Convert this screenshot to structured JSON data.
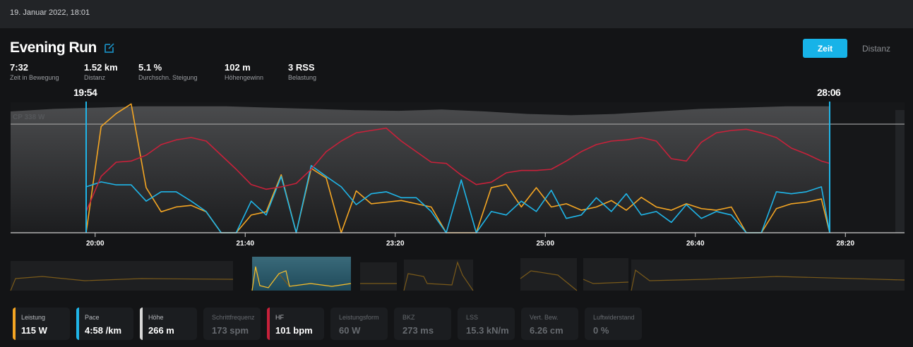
{
  "header": {
    "date": "19. Januar 2022, 18:01"
  },
  "activity": {
    "title": "Evening Run",
    "edit_icon": "edit-icon"
  },
  "view_toggle": {
    "options": [
      "Zeit",
      "Distanz"
    ],
    "selected": "Zeit",
    "accent": "#17b3e8"
  },
  "stats": [
    {
      "value": "7:32",
      "label": "Zeit in Bewegung"
    },
    {
      "value": "1.52 km",
      "label": "Distanz"
    },
    {
      "value": "5.1 %",
      "label": "Durchschn. Steigung"
    },
    {
      "value": "102 m",
      "label": "Höhengewinn"
    },
    {
      "value": "3 RSS",
      "label": "Belastung"
    }
  ],
  "selection": {
    "start": "19:54",
    "end": "28:06"
  },
  "chart_data": {
    "type": "line",
    "x_unit": "time mm:ss",
    "x_ticks": [
      "20:00",
      "21:40",
      "23:20",
      "25:00",
      "26:40",
      "28:20"
    ],
    "cp_label": "CP 338 W",
    "cp_value": 338,
    "t_start_s": 1194,
    "t_step_s": 10,
    "series": [
      {
        "name": "Leistung",
        "color": "#f5a623",
        "values": [
          0,
          330,
          370,
          400,
          140,
          65,
          80,
          85,
          65,
          0,
          0,
          55,
          65,
          180,
          0,
          200,
          170,
          0,
          130,
          90,
          95,
          100,
          90,
          80,
          0,
          0,
          0,
          140,
          150,
          80,
          140,
          80,
          90,
          70,
          80,
          100,
          70,
          110,
          80,
          70,
          90,
          75,
          70,
          80,
          0,
          0,
          75,
          90,
          95,
          105,
          0
        ]
      },
      {
        "name": "Pace",
        "color": "#1fb5e8",
        "values": [
          9.3,
          10.3,
          9.7,
          9.7,
          6.4,
          8.3,
          8.3,
          6.4,
          4.3,
          0,
          0,
          6.4,
          3.6,
          11.4,
          0,
          13.6,
          11.4,
          9.3,
          5.7,
          7.9,
          8.3,
          7.1,
          7.1,
          4.3,
          0,
          10.7,
          0,
          4.3,
          3.6,
          6.4,
          4.3,
          8.6,
          2.9,
          3.6,
          7.1,
          4.3,
          7.9,
          3.6,
          4.3,
          2.1,
          5.7,
          2.9,
          4.3,
          3.6,
          0,
          0,
          8.3,
          7.9,
          8.3,
          9.3,
          0
        ]
      },
      {
        "name": "HF",
        "color": "#c8213a",
        "values": [
          70,
          100,
          112,
          113,
          118,
          127,
          131,
          133,
          130,
          118,
          106,
          93,
          89,
          91,
          94,
          106,
          121,
          130,
          137,
          139,
          141,
          130,
          121,
          112,
          111,
          101,
          93,
          95,
          103,
          105,
          105,
          106,
          113,
          121,
          127,
          130,
          131,
          133,
          130,
          115,
          113,
          129,
          137,
          139,
          140,
          137,
          133,
          124,
          119,
          113,
          111
        ]
      },
      {
        "name": "Höhe",
        "color": "#d8d8d8",
        "values": [
          262,
          266,
          268,
          270,
          270,
          270,
          268,
          266,
          264,
          263,
          265,
          262,
          258,
          256,
          258,
          262,
          266,
          268,
          270,
          270
        ]
      }
    ]
  },
  "metrics": [
    {
      "label": "Leistung",
      "value": "115 W",
      "color": "#f5a623",
      "active": true
    },
    {
      "label": "Pace",
      "value": "4:58 /km",
      "color": "#1fb5e8",
      "active": true
    },
    {
      "label": "Höhe",
      "value": "266 m",
      "color": "#d8d8d8",
      "active": true
    },
    {
      "label": "Schrittfrequenz",
      "value": "173 spm",
      "active": false
    },
    {
      "label": "HF",
      "value": "101 bpm",
      "color": "#c8213a",
      "active": true
    },
    {
      "label": "Leistungsform",
      "value": "60 W",
      "active": false
    },
    {
      "label": "BKZ",
      "value": "273 ms",
      "active": false
    },
    {
      "label": "LSS",
      "value": "15.3 kN/m",
      "active": false
    },
    {
      "label": "Vert. Bew.",
      "value": "6.26 cm",
      "active": false
    },
    {
      "label": "Luftwiderstand",
      "value": "0 %",
      "active": false
    }
  ]
}
